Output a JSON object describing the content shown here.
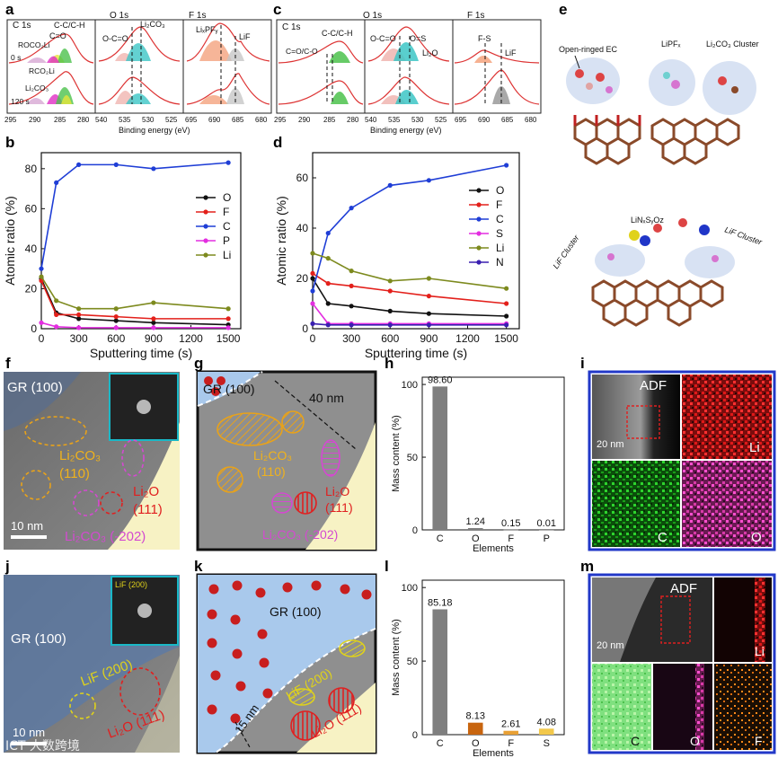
{
  "panel_letters": {
    "a": "a",
    "b": "b",
    "c": "c",
    "d": "d",
    "e": "e",
    "f": "f",
    "g": "g",
    "h": "h",
    "i": "i",
    "j": "j",
    "k": "k",
    "l": "l",
    "m": "m"
  },
  "xps_a": {
    "c1s_title": "C 1s",
    "o1s_title": "O 1s",
    "f1s_title": "F 1s",
    "labels": {
      "ccch": "C-C/C-H",
      "ceo": "C=O",
      "roco2li": "ROCO₂Li",
      "rco2li": "RCO₂Li",
      "li2co3_c": "Li₂CO₃",
      "t0": "0 s",
      "t120": "120 s",
      "oco": "O-C=O",
      "li2co3_o": "Li₂CO₃",
      "lipf6": "LiₓPFᵧ",
      "lif": "LiF"
    },
    "c_ticks": [
      "295",
      "290",
      "285",
      "280"
    ],
    "o_ticks": [
      "540",
      "535",
      "530",
      "525"
    ],
    "f_ticks": [
      "695",
      "690",
      "685",
      "680"
    ],
    "xlabel": "Binding energy (eV)"
  },
  "xps_c": {
    "c1s_title": "C 1s",
    "o1s_title": "O 1s",
    "f1s_title": "F 1s",
    "labels": {
      "ccch": "C-C/C-H",
      "coc": "C=O/C-O",
      "oco": "O-C=O",
      "os": "O=S",
      "li2o": "Li₂O",
      "fs": "F-S",
      "lif": "LiF"
    },
    "c_ticks": [
      "295",
      "290",
      "285",
      "280"
    ],
    "o_ticks": [
      "540",
      "535",
      "530",
      "525"
    ],
    "f_ticks": [
      "695",
      "690",
      "685",
      "680"
    ],
    "xlabel": "Binding energy (eV)"
  },
  "panel_e": {
    "open_ec": "Open-ringed EC",
    "lipf": "LiPFₓ",
    "li2co3": "Li₂CO₃ Cluster",
    "linsyoz": "LiNₓSᵧOz",
    "lif_left": "LiF Cluster",
    "lif_right": "LiF Cluster"
  },
  "chart_data": [
    {
      "id": "b",
      "type": "line",
      "xlabel": "Sputtering time (s)",
      "ylabel": "Atomic ratio (%)",
      "xlim": [
        0,
        1600
      ],
      "ylim": [
        0,
        88
      ],
      "xticks": [
        0,
        300,
        600,
        900,
        1200,
        1500
      ],
      "yticks": [
        0,
        20,
        40,
        60,
        80
      ],
      "x": [
        0,
        120,
        300,
        600,
        900,
        1500
      ],
      "series": [
        {
          "name": "O",
          "color": "#111111",
          "values": [
            25,
            8,
            5,
            4,
            3,
            2
          ]
        },
        {
          "name": "F",
          "color": "#e3201b",
          "values": [
            24,
            7,
            7,
            6,
            5,
            5
          ]
        },
        {
          "name": "C",
          "color": "#1f3ed6",
          "values": [
            30,
            73,
            82,
            82,
            80,
            83
          ]
        },
        {
          "name": "P",
          "color": "#e32ee0",
          "values": [
            3,
            1,
            0.5,
            0.5,
            0.5,
            0.5
          ]
        },
        {
          "name": "Li",
          "color": "#7d8a1e",
          "values": [
            26,
            14,
            10,
            10,
            13,
            10
          ]
        }
      ]
    },
    {
      "id": "d",
      "type": "line",
      "xlabel": "Sputtering time (s)",
      "ylabel": "Atomic ratio (%)",
      "xlim": [
        0,
        1600
      ],
      "ylim": [
        0,
        70
      ],
      "xticks": [
        0,
        300,
        600,
        900,
        1200,
        1500
      ],
      "yticks": [
        0,
        20,
        40,
        60
      ],
      "x": [
        0,
        120,
        300,
        600,
        900,
        1500
      ],
      "series": [
        {
          "name": "O",
          "color": "#111111",
          "values": [
            20,
            10,
            9,
            7,
            6,
            5
          ]
        },
        {
          "name": "F",
          "color": "#e3201b",
          "values": [
            22,
            18,
            17,
            15,
            13,
            10
          ]
        },
        {
          "name": "C",
          "color": "#1f3ed6",
          "values": [
            15,
            38,
            48,
            57,
            59,
            65
          ]
        },
        {
          "name": "S",
          "color": "#e32ee0",
          "values": [
            10,
            2,
            2,
            2,
            2,
            2
          ]
        },
        {
          "name": "Li",
          "color": "#7d8a1e",
          "values": [
            30,
            28,
            23,
            19,
            20,
            16
          ]
        },
        {
          "name": "N",
          "color": "#3a1fb0",
          "values": [
            2,
            1.5,
            1.5,
            1.5,
            1.5,
            1.5
          ]
        }
      ]
    },
    {
      "id": "h",
      "type": "bar",
      "ylabel": "Mass content (%)",
      "xlabel": "Elements",
      "ylim": [
        0,
        105
      ],
      "yticks": [
        0,
        50,
        100
      ],
      "categories": [
        "C",
        "O",
        "F",
        "P"
      ],
      "values": [
        98.6,
        1.24,
        0.15,
        0.01
      ],
      "value_labels": [
        "98.60",
        "1.24",
        "0.15",
        "0.01"
      ],
      "colors": [
        "#7f7f7f",
        "#7f7f7f",
        "#7f7f7f",
        "#7f7f7f"
      ]
    },
    {
      "id": "l",
      "type": "bar",
      "ylabel": "Mass content (%)",
      "xlabel": "Elements",
      "ylim": [
        0,
        105
      ],
      "yticks": [
        0,
        50,
        100
      ],
      "categories": [
        "C",
        "O",
        "F",
        "S"
      ],
      "values": [
        85.18,
        8.13,
        2.61,
        4.08
      ],
      "value_labels": [
        "85.18",
        "8.13",
        "2.61",
        "4.08"
      ],
      "colors": [
        "#7f7f7f",
        "#c8650f",
        "#e8a035",
        "#f2c84b"
      ]
    }
  ],
  "panel_f": {
    "gr": "GR (100)",
    "li2co3_110_a": "Li₂CO₃",
    "li2co3_110_b": "(110)",
    "li2o_a": "Li₂O",
    "li2o_b": "(111)",
    "li2co3_202": "Li₂CO₃ (-202)",
    "scale": "10 nm"
  },
  "panel_g": {
    "gr": "GR (100)",
    "dist": "40 nm",
    "li2co3_a": "Li₂CO₃",
    "li2co3_b": "(110)",
    "li2o_a": "Li₂O",
    "li2o_b": "(111)",
    "li2co3_202": "Li₂CO₃ (-202)"
  },
  "panel_i": {
    "adf": "ADF",
    "scale": "20 nm",
    "li": "Li",
    "c": "C",
    "o": "O"
  },
  "panel_j": {
    "gr": "GR (100)",
    "lif": "LiF (200)",
    "li2o": "Li₂O (111)",
    "inset": "LiF (200)",
    "scale": "10 nm"
  },
  "panel_k": {
    "gr": "GR (100)",
    "lif": "LiF (200)",
    "li2o": "Li₂O (111)",
    "dist": "15 nm"
  },
  "panel_m": {
    "adf": "ADF",
    "scale": "20 nm",
    "li": "Li",
    "c": "C",
    "o": "O",
    "f": "F"
  },
  "watermark": "ICT 大数跨境"
}
